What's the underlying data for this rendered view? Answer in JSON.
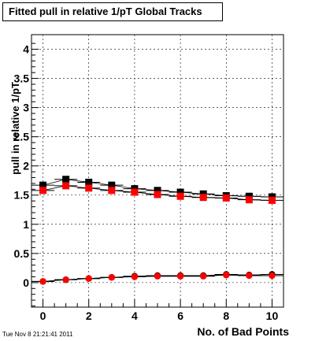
{
  "title": "Fitted pull in relative 1/pT  Global Tracks",
  "timestamp": "Tue Nov  8 21:21:41 2011",
  "chart_data": {
    "type": "scatter",
    "title": "Fitted pull in relative 1/pT  Global Tracks",
    "xlabel": "No. of Bad Points",
    "ylabel": "pull in relative 1/pT",
    "xlim": [
      -0.5,
      10.5
    ],
    "ylim": [
      -0.42,
      4.25
    ],
    "x_ticks": [
      "0",
      "2",
      "4",
      "6",
      "8",
      "10"
    ],
    "y_ticks": [
      "0",
      "0.5",
      "1",
      "1.5",
      "2",
      "2.5",
      "3",
      "3.5",
      "4"
    ],
    "grid": true,
    "x": [
      0,
      1,
      2,
      3,
      4,
      5,
      6,
      7,
      8,
      9,
      10
    ],
    "series": [
      {
        "color": "#000000",
        "marker": "square",
        "values": [
          1.67,
          1.77,
          1.72,
          1.67,
          1.61,
          1.58,
          1.55,
          1.52,
          1.49,
          1.48,
          1.47
        ]
      },
      {
        "color": "#ff0000",
        "marker": "square",
        "values": [
          1.58,
          1.66,
          1.62,
          1.58,
          1.55,
          1.51,
          1.48,
          1.46,
          1.45,
          1.42,
          1.41
        ]
      },
      {
        "color": "#000000",
        "marker": "circle",
        "values": [
          0.02,
          0.05,
          0.07,
          0.09,
          0.11,
          0.12,
          0.12,
          0.12,
          0.14,
          0.13,
          0.14
        ]
      },
      {
        "color": "#ff0000",
        "marker": "circle",
        "values": [
          0.02,
          0.05,
          0.07,
          0.09,
          0.1,
          0.11,
          0.11,
          0.11,
          0.13,
          0.12,
          0.12
        ]
      }
    ]
  }
}
